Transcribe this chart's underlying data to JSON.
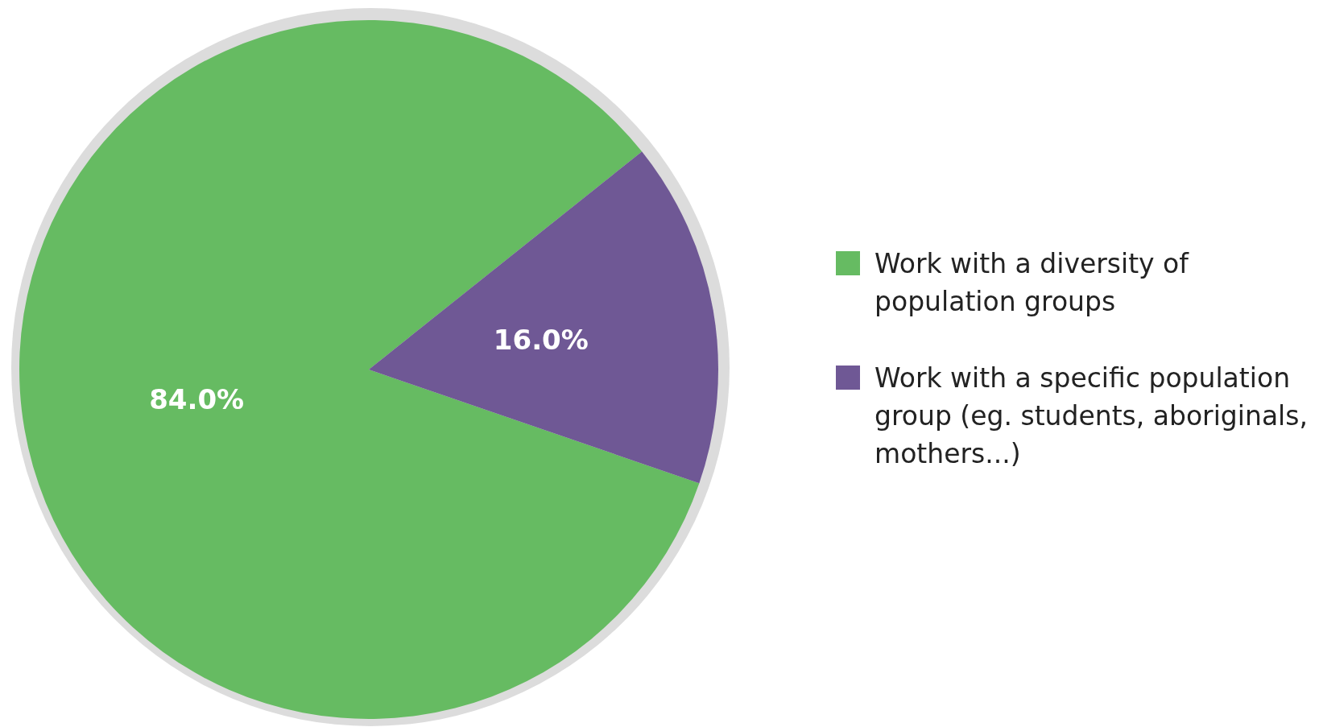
{
  "chart_data": {
    "type": "pie",
    "categories": [
      "Work with a diversity of population groups",
      "Work with a specific population group (eg. students, aboriginals, mothers...)"
    ],
    "values": [
      84,
      16
    ],
    "colors": [
      "#66bb62",
      "#6f5895"
    ],
    "value_labels": [
      "84.0%",
      "16.0%"
    ],
    "legend": "right"
  }
}
